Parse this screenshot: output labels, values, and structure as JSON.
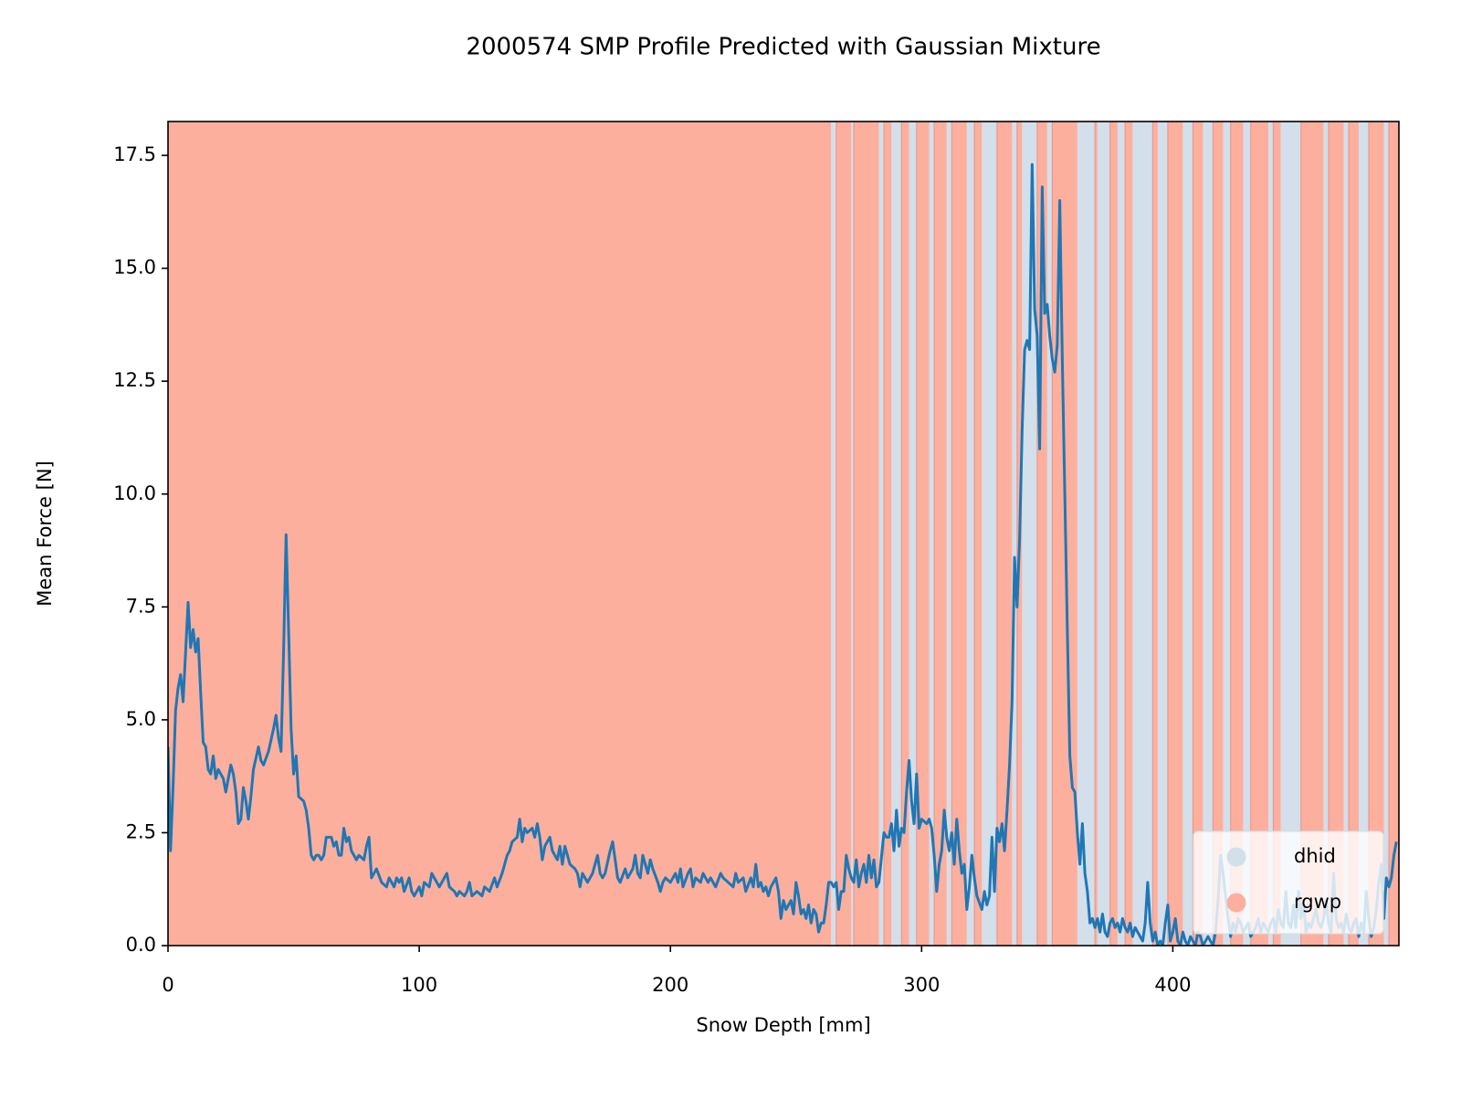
{
  "chart_data": {
    "type": "classified-line",
    "title": "2000574 SMP Profile Predicted with Gaussian Mixture",
    "x_label": "Snow Depth [mm]",
    "y_label": "Mean Force [N]",
    "xlim": [
      0,
      490
    ],
    "ylim": [
      0,
      18.25
    ],
    "xticks": [
      0,
      100,
      200,
      300,
      400
    ],
    "yticks": [
      {
        "value": 0,
        "label": "0.0"
      },
      2.5,
      {
        "value": 5,
        "label": "5.0"
      },
      7.5,
      {
        "value": 10,
        "label": "10.0"
      },
      12.5,
      {
        "value": 15,
        "label": "15.0"
      },
      17.5
    ],
    "legend_loc": "lower right",
    "classes": [
      {
        "name": "dhid",
        "color": "#d3dfea",
        "spans": [
          [
            264,
            266
          ],
          [
            272,
            273
          ],
          [
            283,
            285
          ],
          [
            288,
            292
          ],
          [
            295,
            298
          ],
          [
            303,
            305
          ],
          [
            310,
            312
          ],
          [
            318,
            321
          ],
          [
            324,
            330
          ],
          [
            336,
            338
          ],
          [
            340,
            346
          ],
          [
            350,
            352
          ],
          [
            362,
            369
          ],
          [
            370,
            375
          ],
          [
            378,
            381
          ],
          [
            384,
            392
          ],
          [
            394,
            398
          ],
          [
            404,
            408
          ],
          [
            412,
            416
          ],
          [
            420,
            423
          ],
          [
            428,
            431
          ],
          [
            438,
            440
          ],
          [
            443,
            451
          ],
          [
            460,
            462
          ],
          [
            468,
            470
          ],
          [
            474,
            478
          ],
          [
            484,
            486
          ]
        ]
      },
      {
        "name": "rgwp",
        "color": "#fdaf9e",
        "spans": [
          [
            0,
            264
          ],
          [
            266,
            272
          ],
          [
            273,
            283
          ],
          [
            285,
            288
          ],
          [
            292,
            295
          ],
          [
            298,
            303
          ],
          [
            305,
            310
          ],
          [
            312,
            318
          ],
          [
            321,
            324
          ],
          [
            330,
            336
          ],
          [
            338,
            340
          ],
          [
            346,
            350
          ],
          [
            352,
            362
          ],
          [
            369,
            370
          ],
          [
            375,
            378
          ],
          [
            381,
            384
          ],
          [
            392,
            394
          ],
          [
            398,
            404
          ],
          [
            408,
            412
          ],
          [
            416,
            420
          ],
          [
            423,
            428
          ],
          [
            431,
            438
          ],
          [
            440,
            443
          ],
          [
            451,
            460
          ],
          [
            462,
            468
          ],
          [
            470,
            474
          ],
          [
            478,
            484
          ],
          [
            486,
            490
          ]
        ]
      }
    ],
    "line": {
      "color": "#1f77b4",
      "x": [
        0,
        1,
        2,
        3,
        4,
        5,
        6,
        7,
        8,
        9,
        10,
        11,
        12,
        13,
        14,
        15,
        16,
        17,
        18,
        19,
        20,
        22,
        23,
        25,
        26,
        27,
        28,
        29,
        30,
        31,
        32,
        33,
        34,
        36,
        37,
        38,
        40,
        42,
        43,
        44,
        45,
        46,
        47,
        48,
        49,
        50,
        51,
        52,
        54,
        55,
        56,
        57,
        58,
        59,
        60,
        61,
        62,
        63,
        65,
        66,
        67,
        68,
        69,
        70,
        71,
        72,
        73,
        74,
        75,
        76,
        78,
        79,
        80,
        81,
        82,
        83,
        85,
        87,
        88,
        90,
        91,
        92,
        93,
        94,
        96,
        97,
        98,
        100,
        101,
        102,
        104,
        105,
        106,
        107,
        108,
        110,
        111,
        112,
        114,
        115,
        116,
        118,
        119,
        120,
        121,
        123,
        125,
        126,
        128,
        130,
        131,
        133,
        135,
        136,
        137,
        139,
        140,
        141,
        142,
        143,
        145,
        146,
        147,
        148,
        149,
        150,
        152,
        153,
        155,
        156,
        157,
        158,
        159,
        160,
        162,
        163,
        164,
        165,
        166,
        167,
        168,
        169,
        170,
        171,
        172,
        173,
        174,
        176,
        177,
        178,
        179,
        180,
        182,
        183,
        185,
        186,
        187,
        188,
        189,
        190,
        191,
        192,
        193,
        195,
        196,
        197,
        198,
        200,
        202,
        203,
        204,
        205,
        207,
        208,
        209,
        210,
        212,
        213,
        215,
        216,
        218,
        220,
        221,
        223,
        225,
        226,
        227,
        229,
        230,
        232,
        233,
        234,
        235,
        236,
        237,
        238,
        239,
        240,
        241,
        242,
        243,
        244,
        245,
        246,
        248,
        249,
        250,
        251,
        252,
        253,
        254,
        255,
        256,
        257,
        258,
        259,
        260,
        261,
        262,
        263,
        264,
        265,
        266,
        267,
        268,
        269,
        270,
        271,
        272,
        273,
        274,
        275,
        276,
        277,
        278,
        279,
        280,
        281,
        282,
        283,
        285,
        286,
        287,
        288,
        289,
        290,
        291,
        292,
        293,
        294,
        295,
        296,
        297,
        298,
        299,
        300,
        302,
        303,
        304,
        305,
        306,
        307,
        308,
        309,
        310,
        311,
        312,
        313,
        314,
        315,
        316,
        317,
        318,
        319,
        320,
        321,
        322,
        324,
        325,
        326,
        327,
        328,
        329,
        330,
        331,
        332,
        333,
        334,
        335,
        336,
        337,
        338,
        339,
        340,
        341,
        342,
        343,
        344,
        345,
        346,
        347,
        348,
        349,
        350,
        351,
        352,
        353,
        354,
        355,
        356,
        357,
        358,
        359,
        360,
        361,
        362,
        363,
        364,
        365,
        366,
        367,
        368,
        369,
        370,
        371,
        372,
        373,
        374,
        375,
        376,
        377,
        378,
        379,
        380,
        381,
        382,
        383,
        384,
        385,
        386,
        387,
        388,
        389,
        390,
        391,
        392,
        393,
        394,
        395,
        396,
        397,
        398,
        399,
        400,
        401,
        402,
        403,
        404,
        405,
        406,
        407,
        408,
        409,
        410,
        411,
        412,
        413,
        414,
        415,
        416,
        417,
        418,
        419,
        420,
        421,
        422,
        423,
        424,
        425,
        426,
        427,
        428,
        429,
        430,
        431,
        432,
        433,
        434,
        435,
        436,
        437,
        438,
        439,
        440,
        441,
        442,
        443,
        444,
        445,
        446,
        447,
        448,
        449,
        450,
        451,
        452,
        453,
        454,
        455,
        456,
        457,
        458,
        459,
        460,
        461,
        462,
        463,
        464,
        465,
        466,
        467,
        468,
        469,
        470,
        471,
        472,
        473,
        474,
        475,
        476,
        477,
        478,
        479,
        480,
        481,
        482,
        483,
        484,
        485,
        486,
        487,
        488,
        489
      ],
      "values": [
        4.4,
        2.1,
        3.5,
        5.2,
        5.7,
        6.0,
        5.4,
        6.5,
        7.6,
        6.6,
        7.0,
        6.5,
        6.8,
        5.6,
        4.5,
        4.4,
        3.9,
        3.8,
        4.2,
        3.7,
        3.9,
        3.7,
        3.4,
        4.0,
        3.8,
        3.4,
        2.7,
        2.8,
        3.5,
        3.2,
        2.8,
        3.3,
        3.9,
        4.4,
        4.1,
        4.0,
        4.3,
        4.8,
        5.1,
        4.6,
        4.3,
        6.5,
        9.1,
        7.0,
        4.8,
        3.8,
        4.2,
        3.3,
        3.2,
        3.0,
        2.6,
        2.0,
        1.9,
        2.0,
        2.0,
        1.9,
        2.0,
        2.4,
        2.4,
        2.2,
        2.3,
        2.0,
        2.0,
        2.6,
        2.3,
        2.4,
        2.1,
        2.0,
        1.9,
        2.0,
        1.9,
        2.2,
        2.4,
        1.5,
        1.6,
        1.7,
        1.4,
        1.3,
        1.5,
        1.3,
        1.5,
        1.4,
        1.5,
        1.2,
        1.5,
        1.2,
        1.1,
        1.3,
        1.1,
        1.4,
        1.3,
        1.6,
        1.5,
        1.4,
        1.3,
        1.5,
        1.6,
        1.3,
        1.2,
        1.1,
        1.2,
        1.1,
        1.2,
        1.4,
        1.1,
        1.2,
        1.1,
        1.3,
        1.2,
        1.5,
        1.3,
        1.6,
        2.0,
        2.1,
        2.3,
        2.4,
        2.8,
        2.3,
        2.6,
        2.5,
        2.6,
        2.4,
        2.7,
        2.4,
        1.9,
        2.2,
        2.4,
        2.1,
        1.9,
        2.2,
        1.8,
        2.2,
        2.0,
        1.8,
        1.7,
        1.6,
        1.3,
        1.6,
        1.5,
        1.4,
        1.5,
        1.6,
        1.8,
        2.0,
        1.6,
        1.5,
        1.6,
        2.1,
        2.3,
        1.9,
        1.5,
        1.4,
        1.7,
        1.5,
        1.7,
        2.0,
        1.6,
        1.5,
        2.0,
        1.8,
        1.6,
        1.9,
        1.7,
        1.4,
        1.2,
        1.4,
        1.5,
        1.4,
        1.6,
        1.4,
        1.7,
        1.3,
        1.6,
        1.7,
        1.3,
        1.5,
        1.4,
        1.6,
        1.4,
        1.5,
        1.3,
        1.6,
        1.5,
        1.4,
        1.3,
        1.6,
        1.4,
        1.5,
        1.2,
        1.5,
        1.3,
        1.8,
        1.3,
        1.4,
        1.2,
        1.3,
        1.1,
        1.3,
        1.4,
        1.5,
        1.2,
        0.6,
        1.0,
        0.8,
        1.0,
        0.7,
        1.4,
        1.1,
        0.7,
        0.8,
        0.6,
        0.9,
        0.5,
        0.8,
        0.7,
        0.3,
        0.5,
        0.5,
        0.9,
        1.4,
        1.4,
        1.3,
        1.4,
        0.8,
        1.2,
        1.2,
        2.0,
        1.7,
        1.5,
        1.4,
        1.9,
        1.3,
        1.6,
        1.8,
        1.4,
        2.0,
        1.5,
        1.9,
        1.3,
        1.4,
        2.5,
        2.4,
        2.4,
        2.7,
        2.1,
        3.0,
        2.2,
        2.6,
        2.5,
        3.4,
        4.1,
        3.2,
        2.7,
        3.8,
        2.6,
        2.8,
        2.7,
        2.8,
        2.6,
        2.0,
        1.2,
        1.8,
        2.1,
        3.0,
        2.4,
        2.1,
        2.5,
        1.8,
        2.8,
        2.1,
        1.6,
        1.8,
        0.8,
        1.3,
        2.0,
        1.5,
        1.1,
        0.8,
        1.2,
        0.9,
        1.1,
        2.4,
        1.2,
        2.6,
        2.3,
        2.7,
        2.1,
        3.0,
        4.0,
        5.4,
        8.6,
        7.5,
        9.0,
        11.4,
        13.2,
        13.4,
        13.2,
        17.3,
        14.1,
        13.5,
        11.0,
        16.8,
        14.0,
        14.2,
        13.5,
        13.0,
        12.7,
        13.3,
        16.5,
        13.0,
        10.0,
        7.0,
        4.2,
        3.5,
        3.4,
        2.5,
        1.8,
        2.7,
        1.6,
        1.2,
        0.5,
        0.6,
        0.4,
        0.6,
        0.3,
        0.7,
        0.3,
        0.2,
        0.5,
        0.6,
        0.4,
        0.5,
        0.3,
        0.6,
        0.4,
        0.3,
        0.5,
        0.2,
        0.4,
        0.3,
        0.2,
        0.1,
        0.5,
        1.4,
        0.5,
        0.1,
        0.3,
        0.0,
        0.1,
        0.0,
        0.5,
        0.9,
        0.1,
        0.3,
        0.6,
        0.1,
        0.0,
        0.3,
        0.1,
        0.0,
        0.2,
        0.1,
        0.0,
        0.3,
        0.2,
        0.0,
        0.1,
        0.2,
        0.1,
        0.0,
        0.3,
        1.0,
        2.0,
        1.6,
        1.1,
        0.6,
        0.2,
        0.5,
        0.3,
        0.6,
        0.5,
        0.3,
        0.4,
        0.5,
        0.2,
        0.3,
        0.4,
        0.6,
        0.3,
        0.5,
        0.4,
        0.3,
        0.5,
        0.6,
        0.3,
        0.8,
        0.5,
        0.4,
        1.2,
        0.5,
        0.4,
        0.9,
        0.4,
        1.2,
        0.6,
        1.0,
        0.3,
        0.5,
        0.4,
        0.6,
        0.8,
        0.5,
        0.4,
        0.6,
        1.0,
        0.5,
        0.3,
        1.6,
        0.6,
        0.4,
        0.5,
        0.3,
        0.7,
        0.4,
        0.3,
        0.5,
        0.6,
        0.2,
        0.5,
        0.3,
        1.2,
        0.6,
        0.2,
        0.4,
        0.8,
        1.4,
        1.8,
        0.6,
        1.5,
        1.3,
        1.5,
        2.0,
        2.3
      ]
    }
  }
}
